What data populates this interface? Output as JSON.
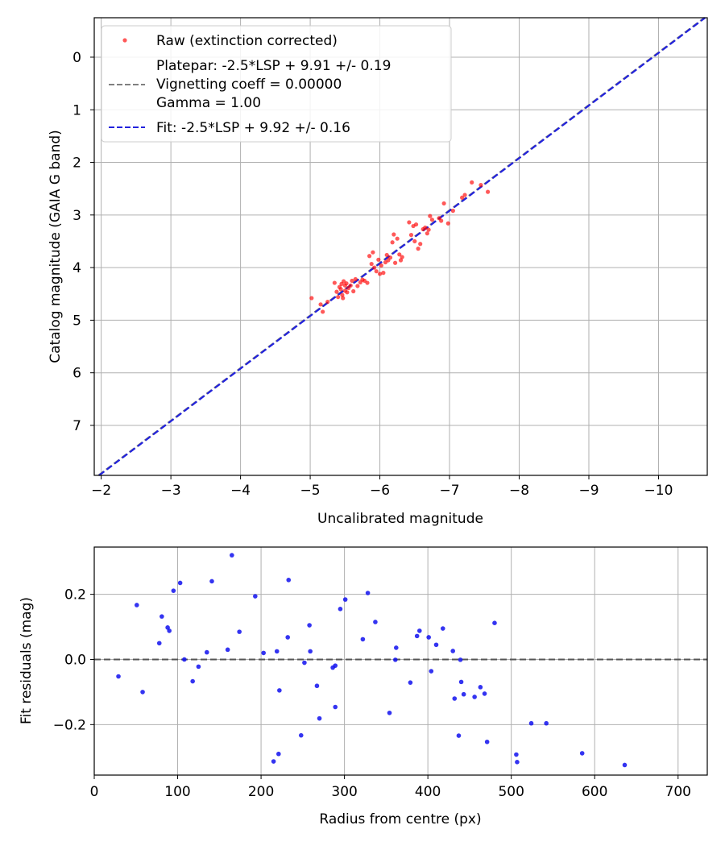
{
  "chart_data": [
    {
      "type": "scatter",
      "title": "",
      "xlabel": "Uncalibrated magnitude",
      "ylabel": "Catalog magnitude (GAIA G band)",
      "xlim": [
        -1.9,
        -10.7
      ],
      "ylim": [
        7.95,
        -0.75
      ],
      "x_inverted": true,
      "y_inverted": true,
      "grid": true,
      "xticks": [
        -2,
        -3,
        -4,
        -5,
        -6,
        -7,
        -8,
        -9,
        -10
      ],
      "xtick_labels": [
        "−2",
        "−3",
        "−4",
        "−5",
        "−6",
        "−7",
        "−8",
        "−9",
        "−10"
      ],
      "yticks": [
        0,
        1,
        2,
        3,
        4,
        5,
        6,
        7
      ],
      "ytick_labels": [
        "0",
        "1",
        "2",
        "3",
        "4",
        "5",
        "6",
        "7"
      ],
      "legend_position": "top-left",
      "legend": [
        {
          "label": "Raw (extinction corrected)",
          "style": "marker",
          "color": "#ff0000"
        },
        {
          "label_lines": [
            "Platepar: -2.5*LSP + 9.91 +/- 0.19",
            "Vignetting coeff = 0.00000",
            "Gamma = 1.00"
          ],
          "style": "dashed",
          "color": "#808080"
        },
        {
          "label": "Fit: -2.5*LSP + 9.92 +/- 0.16",
          "style": "dashed",
          "color": "#2222dd"
        }
      ],
      "lines": [
        {
          "name": "Platepar",
          "intercept": 9.91,
          "color": "#808080"
        },
        {
          "name": "Fit",
          "intercept": 9.92,
          "color": "#2222dd"
        }
      ],
      "series": [
        {
          "name": "Raw (extinction corrected)",
          "color": "#ff0000",
          "points": [
            [
              -5.02,
              4.58
            ],
            [
              -5.15,
              4.7
            ],
            [
              -5.18,
              4.84
            ],
            [
              -5.25,
              4.65
            ],
            [
              -5.35,
              4.29
            ],
            [
              -5.38,
              4.46
            ],
            [
              -5.4,
              4.56
            ],
            [
              -5.42,
              4.37
            ],
            [
              -5.44,
              4.41
            ],
            [
              -5.45,
              4.31
            ],
            [
              -5.46,
              4.52
            ],
            [
              -5.47,
              4.58
            ],
            [
              -5.48,
              4.26
            ],
            [
              -5.5,
              4.34
            ],
            [
              -5.5,
              4.44
            ],
            [
              -5.52,
              4.3
            ],
            [
              -5.53,
              4.47
            ],
            [
              -5.55,
              4.39
            ],
            [
              -5.58,
              4.34
            ],
            [
              -5.6,
              4.25
            ],
            [
              -5.62,
              4.45
            ],
            [
              -5.65,
              4.22
            ],
            [
              -5.68,
              4.35
            ],
            [
              -5.72,
              4.28
            ],
            [
              -5.75,
              4.23
            ],
            [
              -5.78,
              4.25
            ],
            [
              -5.82,
              4.29
            ],
            [
              -5.85,
              3.78
            ],
            [
              -5.88,
              3.93
            ],
            [
              -5.9,
              3.71
            ],
            [
              -5.92,
              4.0
            ],
            [
              -5.95,
              4.07
            ],
            [
              -5.98,
              3.85
            ],
            [
              -6.0,
              4.12
            ],
            [
              -6.02,
              3.96
            ],
            [
              -6.05,
              4.1
            ],
            [
              -6.08,
              3.9
            ],
            [
              -6.1,
              3.76
            ],
            [
              -6.12,
              3.86
            ],
            [
              -6.15,
              3.81
            ],
            [
              -6.18,
              3.52
            ],
            [
              -6.2,
              3.37
            ],
            [
              -6.22,
              3.91
            ],
            [
              -6.25,
              3.45
            ],
            [
              -6.28,
              3.75
            ],
            [
              -6.3,
              3.86
            ],
            [
              -6.32,
              3.8
            ],
            [
              -6.42,
              3.14
            ],
            [
              -6.45,
              3.38
            ],
            [
              -6.48,
              3.21
            ],
            [
              -6.5,
              3.5
            ],
            [
              -6.52,
              3.18
            ],
            [
              -6.55,
              3.64
            ],
            [
              -6.58,
              3.55
            ],
            [
              -6.62,
              3.27
            ],
            [
              -6.65,
              3.24
            ],
            [
              -6.68,
              3.35
            ],
            [
              -6.7,
              3.28
            ],
            [
              -6.72,
              3.02
            ],
            [
              -6.75,
              3.09
            ],
            [
              -6.85,
              3.06
            ],
            [
              -6.88,
              3.11
            ],
            [
              -6.92,
              2.78
            ],
            [
              -6.98,
              3.16
            ],
            [
              -7.05,
              2.92
            ],
            [
              -7.18,
              2.67
            ],
            [
              -7.22,
              2.62
            ],
            [
              -7.32,
              2.38
            ],
            [
              -7.45,
              2.43
            ],
            [
              -7.55,
              2.56
            ]
          ]
        }
      ]
    },
    {
      "type": "scatter",
      "title": "",
      "xlabel": "Radius from centre (px)",
      "ylabel": "Fit residuals (mag)",
      "xlim": [
        0,
        735
      ],
      "ylim": [
        -0.355,
        0.345
      ],
      "grid": true,
      "xticks": [
        0,
        100,
        200,
        300,
        400,
        500,
        600,
        700
      ],
      "xtick_labels": [
        "0",
        "100",
        "200",
        "300",
        "400",
        "500",
        "600",
        "700"
      ],
      "yticks": [
        -0.2,
        0.0,
        0.2
      ],
      "ytick_labels": [
        "−0.2",
        "0.0",
        "0.2"
      ],
      "reference_line": {
        "y": 0.0,
        "style": "dashed",
        "color": "#555555"
      },
      "series": [
        {
          "name": "residuals",
          "color": "#1010ee",
          "points": [
            [
              29,
              -0.052
            ],
            [
              51,
              0.167
            ],
            [
              58,
              -0.1
            ],
            [
              78,
              0.05
            ],
            [
              81,
              0.132
            ],
            [
              88,
              0.098
            ],
            [
              90,
              0.088
            ],
            [
              95,
              0.211
            ],
            [
              103,
              0.235
            ],
            [
              108,
              0.0
            ],
            [
              118,
              -0.067
            ],
            [
              125,
              -0.022
            ],
            [
              135,
              0.022
            ],
            [
              141,
              0.24
            ],
            [
              160,
              0.03
            ],
            [
              165,
              0.32
            ],
            [
              174,
              0.085
            ],
            [
              193,
              0.194
            ],
            [
              203,
              0.02
            ],
            [
              215,
              -0.313
            ],
            [
              219,
              0.025
            ],
            [
              221,
              -0.29
            ],
            [
              222,
              -0.095
            ],
            [
              232,
              0.068
            ],
            [
              233,
              0.244
            ],
            [
              248,
              -0.233
            ],
            [
              252,
              -0.01
            ],
            [
              258,
              0.105
            ],
            [
              259,
              0.025
            ],
            [
              267,
              -0.081
            ],
            [
              270,
              -0.181
            ],
            [
              286,
              -0.025
            ],
            [
              289,
              -0.019
            ],
            [
              289,
              -0.146
            ],
            [
              295,
              0.155
            ],
            [
              301,
              0.184
            ],
            [
              322,
              0.062
            ],
            [
              328,
              0.204
            ],
            [
              337,
              0.115
            ],
            [
              354,
              -0.164
            ],
            [
              361,
              -0.001
            ],
            [
              362,
              0.036
            ],
            [
              379,
              -0.071
            ],
            [
              387,
              0.072
            ],
            [
              390,
              0.088
            ],
            [
              401,
              0.068
            ],
            [
              404,
              -0.036
            ],
            [
              410,
              0.045
            ],
            [
              418,
              0.095
            ],
            [
              430,
              0.026
            ],
            [
              432,
              -0.12
            ],
            [
              437,
              -0.234
            ],
            [
              439,
              -0.001
            ],
            [
              440,
              -0.069
            ],
            [
              443,
              -0.107
            ],
            [
              456,
              -0.115
            ],
            [
              463,
              -0.085
            ],
            [
              468,
              -0.105
            ],
            [
              471,
              -0.253
            ],
            [
              480,
              0.112
            ],
            [
              506,
              -0.292
            ],
            [
              507,
              -0.315
            ],
            [
              524,
              -0.196
            ],
            [
              542,
              -0.196
            ],
            [
              585,
              -0.288
            ],
            [
              636,
              -0.324
            ]
          ]
        }
      ]
    }
  ]
}
